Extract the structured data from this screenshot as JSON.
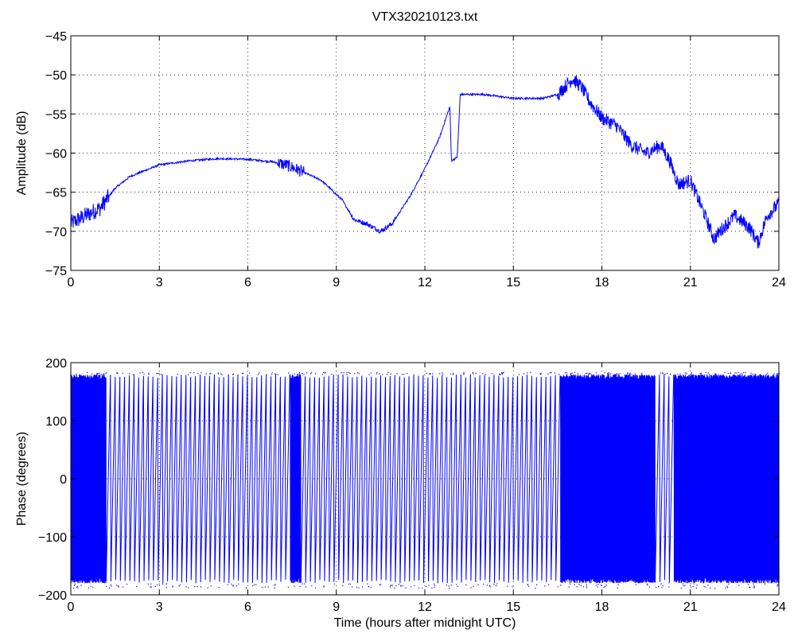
{
  "figure": {
    "title": "VTX320210123.txt"
  },
  "chart_data": [
    {
      "type": "line",
      "title": "VTX320210123.txt",
      "xlabel": "",
      "ylabel": "Amplitude (dB)",
      "xlim": [
        0,
        24
      ],
      "ylim": [
        -75,
        -45
      ],
      "xticks": [
        0,
        3,
        6,
        9,
        12,
        15,
        18,
        21,
        24
      ],
      "yticks": [
        -75,
        -70,
        -65,
        -60,
        -55,
        -50,
        -45
      ],
      "grid": true,
      "color": "#0000ff",
      "series": [
        {
          "x": [
            0,
            0.5,
            1,
            1.5,
            2,
            3,
            4,
            5,
            6,
            6.8,
            7.3,
            7.8,
            8.5,
            9.2,
            9.6,
            10,
            10.5,
            10.9,
            11.5,
            12,
            12.5,
            12.85,
            12.9,
            13.1,
            13.2,
            14,
            15,
            16,
            16.5,
            17,
            17.3,
            17.6,
            18,
            18.5,
            19,
            19.5,
            20,
            20.3,
            20.6,
            21,
            21.5,
            21.8,
            22,
            22.5,
            23,
            23.3,
            23.6,
            24
          ],
          "y": [
            -69,
            -68,
            -67,
            -64.5,
            -63,
            -61.5,
            -61,
            -60.7,
            -60.8,
            -61.1,
            -61.5,
            -62.3,
            -63.5,
            -66,
            -68.5,
            -69,
            -70,
            -69,
            -65.5,
            -62,
            -58,
            -54,
            -61,
            -60.5,
            -52.5,
            -52.5,
            -53,
            -53,
            -52.5,
            -50.5,
            -51.5,
            -53.5,
            -55.5,
            -56.5,
            -59,
            -60,
            -59,
            -61,
            -64,
            -63.5,
            -68,
            -71,
            -70,
            -68,
            -69.5,
            -71.5,
            -68,
            -66.5
          ]
        }
      ]
    },
    {
      "type": "line",
      "title": "",
      "xlabel": "Time (hours after midnight UTC)",
      "ylabel": "Phase (degrees)",
      "xlim": [
        0,
        24
      ],
      "ylim": [
        -200,
        200
      ],
      "xticks": [
        0,
        3,
        6,
        9,
        12,
        15,
        18,
        21,
        24
      ],
      "yticks": [
        -200,
        -100,
        0,
        100,
        200
      ],
      "grid": true,
      "color": "#0000ff",
      "phase_range": [
        -180,
        180
      ],
      "dense_intervals": [
        [
          0,
          1.2
        ],
        [
          7.3,
          7.8
        ],
        [
          16.5,
          19.8
        ],
        [
          20.3,
          24
        ]
      ],
      "cycle_interval_hours": 0.16
    }
  ]
}
